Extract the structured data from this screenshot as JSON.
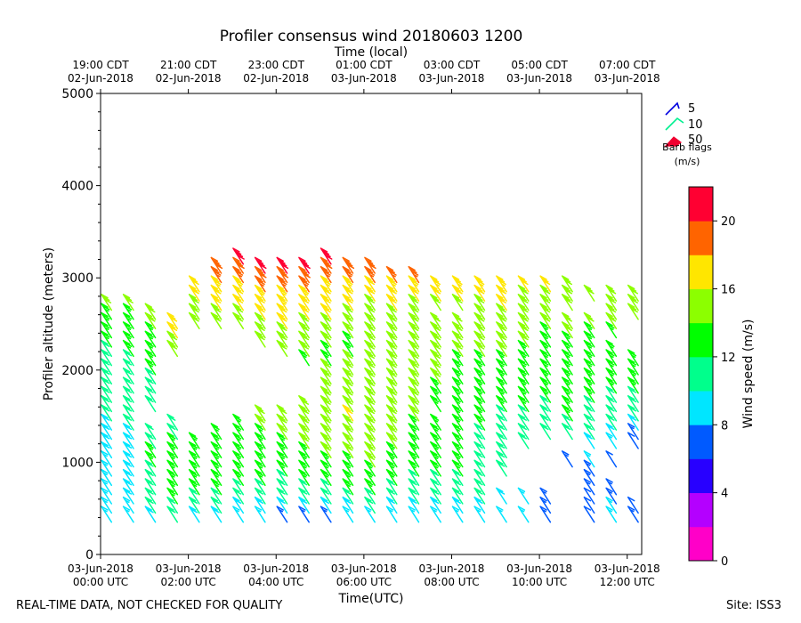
{
  "chart_data": {
    "type": "wind-barb-profile",
    "title": "Profiler consensus wind 20180603 1200",
    "top_axis_label": "Time (local)",
    "top_ticks": [
      {
        "hour": 0,
        "time": "19:00 CDT",
        "date": "02-Jun-2018"
      },
      {
        "hour": 2,
        "time": "21:00 CDT",
        "date": "02-Jun-2018"
      },
      {
        "hour": 4,
        "time": "23:00 CDT",
        "date": "02-Jun-2018"
      },
      {
        "hour": 6,
        "time": "01:00 CDT",
        "date": "03-Jun-2018"
      },
      {
        "hour": 8,
        "time": "03:00 CDT",
        "date": "03-Jun-2018"
      },
      {
        "hour": 10,
        "time": "05:00 CDT",
        "date": "03-Jun-2018"
      },
      {
        "hour": 12,
        "time": "07:00 CDT",
        "date": "03-Jun-2018"
      }
    ],
    "xlabel": "Time(UTC)",
    "x_ticks": [
      {
        "hour": 0,
        "date": "03-Jun-2018",
        "time": "00:00 UTC"
      },
      {
        "hour": 2,
        "date": "03-Jun-2018",
        "time": "02:00 UTC"
      },
      {
        "hour": 4,
        "date": "03-Jun-2018",
        "time": "04:00 UTC"
      },
      {
        "hour": 6,
        "date": "03-Jun-2018",
        "time": "06:00 UTC"
      },
      {
        "hour": 8,
        "date": "03-Jun-2018",
        "time": "08:00 UTC"
      },
      {
        "hour": 10,
        "date": "03-Jun-2018",
        "time": "10:00 UTC"
      },
      {
        "hour": 12,
        "date": "03-Jun-2018",
        "time": "12:00 UTC"
      }
    ],
    "xlim": [
      0,
      12.33
    ],
    "ylabel": "Profiler altitude (meters)",
    "ylim": [
      0,
      5000
    ],
    "y_ticks": [
      0,
      1000,
      2000,
      3000,
      4000,
      5000
    ],
    "legend": {
      "title_line1": "Barb flags",
      "title_line2": "(m/s)",
      "entries": [
        {
          "label": "5",
          "color": "#0000e0"
        },
        {
          "label": "10",
          "color": "#00f090"
        },
        {
          "label": "50",
          "color": "#f00030"
        }
      ]
    },
    "colorbar": {
      "label": "Wind speed (m/s)",
      "min": 0,
      "max": 22,
      "tick_values": [
        0,
        4,
        8,
        12,
        16,
        20
      ],
      "tick_labels": [
        "0",
        "4",
        "8",
        "12",
        "16",
        "20"
      ],
      "colors": [
        "#ff00c8",
        "#b400ff",
        "#2800ff",
        "#005aff",
        "#00e6ff",
        "#00ff8c",
        "#00ff00",
        "#8cff00",
        "#ffe600",
        "#ff6400",
        "#ff0032"
      ]
    },
    "series": {
      "times_hours": [
        0.25,
        0.75,
        1.25,
        1.75,
        2.25,
        2.75,
        3.25,
        3.75,
        4.25,
        4.75,
        5.25,
        5.75,
        6.25,
        6.75,
        7.25,
        7.75,
        8.25,
        8.75,
        9.25,
        9.75,
        10.25,
        10.75,
        11.25,
        11.75,
        12.25
      ],
      "heights_m": [
        350,
        450,
        550,
        650,
        750,
        850,
        950,
        1050,
        1150,
        1250,
        1350,
        1450,
        1550,
        1650,
        1750,
        1850,
        1950,
        2050,
        2150,
        2250,
        2350,
        2450,
        2550,
        2650,
        2750,
        2850,
        2950,
        3050,
        3150
      ],
      "speed_ms": [
        [
          8,
          8,
          8,
          8,
          8,
          8,
          8,
          9,
          9,
          9,
          9,
          10,
          10,
          10,
          10,
          11,
          11,
          11,
          11,
          12,
          12,
          13,
          13,
          14,
          null,
          null,
          null,
          null,
          null
        ],
        [
          8,
          8,
          9,
          9,
          9,
          9,
          9,
          9,
          9,
          9,
          10,
          10,
          10,
          10,
          11,
          11,
          11,
          11,
          12,
          12,
          12,
          13,
          13,
          14,
          null,
          null,
          null,
          null,
          null
        ],
        [
          9,
          10,
          10,
          11,
          11,
          11,
          12,
          12,
          11,
          11,
          null,
          null,
          11,
          11,
          11,
          11,
          12,
          12,
          12,
          13,
          13,
          14,
          14,
          null,
          null,
          null,
          null,
          null,
          null
        ],
        [
          10,
          11,
          12,
          13,
          13,
          13,
          13,
          13,
          12,
          11,
          11,
          null,
          null,
          null,
          null,
          null,
          null,
          null,
          15,
          15,
          16,
          16,
          null,
          null,
          null,
          null,
          null,
          null,
          null
        ],
        [
          9,
          10,
          11,
          12,
          13,
          13,
          12,
          12,
          12,
          null,
          null,
          null,
          null,
          null,
          null,
          null,
          null,
          null,
          null,
          null,
          null,
          15,
          15,
          15,
          16,
          16,
          null,
          null,
          null
        ],
        [
          9,
          10,
          11,
          12,
          13,
          13,
          13,
          13,
          12,
          12,
          null,
          null,
          null,
          null,
          null,
          null,
          null,
          null,
          null,
          null,
          null,
          15,
          15,
          16,
          16,
          17,
          18,
          19,
          null
        ],
        [
          8,
          9,
          10,
          11,
          12,
          12,
          12,
          13,
          13,
          13,
          13,
          null,
          null,
          null,
          null,
          null,
          null,
          null,
          null,
          null,
          null,
          15,
          15,
          16,
          16,
          17,
          18,
          19,
          20
        ],
        [
          8,
          9,
          10,
          11,
          12,
          12,
          12,
          13,
          13,
          13,
          14,
          14,
          null,
          null,
          null,
          null,
          null,
          null,
          null,
          14,
          15,
          15,
          16,
          16,
          17,
          18,
          19,
          20,
          null
        ],
        [
          7,
          9,
          10,
          11,
          11,
          12,
          12,
          13,
          13,
          14,
          14,
          15,
          null,
          null,
          null,
          null,
          null,
          null,
          14,
          14,
          15,
          16,
          16,
          17,
          17,
          18,
          19,
          20,
          null
        ],
        [
          7,
          9,
          10,
          11,
          12,
          12,
          13,
          13,
          14,
          14,
          15,
          15,
          15,
          null,
          null,
          null,
          null,
          13,
          14,
          14,
          15,
          15,
          16,
          16,
          17,
          18,
          19,
          20,
          null
        ],
        [
          7,
          9,
          10,
          11,
          12,
          13,
          13,
          14,
          14,
          15,
          15,
          15,
          15,
          15,
          14,
          14,
          14,
          13,
          13,
          14,
          15,
          15,
          16,
          16,
          16,
          17,
          18,
          19,
          20
        ],
        [
          8,
          9,
          10,
          12,
          12,
          13,
          13,
          14,
          14,
          15,
          15,
          16,
          15,
          15,
          15,
          14,
          14,
          14,
          13,
          13,
          14,
          15,
          15,
          16,
          16,
          17,
          18,
          19,
          null
        ],
        [
          8,
          10,
          11,
          12,
          13,
          13,
          14,
          14,
          14,
          15,
          15,
          15,
          15,
          15,
          15,
          14,
          14,
          14,
          14,
          14,
          14,
          15,
          15,
          15,
          16,
          16,
          18,
          19,
          null
        ],
        [
          8,
          9,
          10,
          11,
          12,
          13,
          13,
          13,
          14,
          14,
          14,
          14,
          14,
          14,
          14,
          14,
          14,
          15,
          15,
          15,
          15,
          15,
          15,
          16,
          16,
          17,
          18,
          null,
          null
        ],
        [
          8,
          9,
          10,
          11,
          11,
          12,
          12,
          13,
          13,
          13,
          13,
          14,
          14,
          14,
          15,
          15,
          15,
          15,
          15,
          15,
          15,
          15,
          15,
          15,
          16,
          17,
          18,
          null,
          null
        ],
        [
          8,
          9,
          10,
          10,
          11,
          12,
          12,
          12,
          13,
          13,
          13,
          null,
          13,
          13,
          13,
          14,
          14,
          14,
          14,
          15,
          15,
          15,
          null,
          15,
          16,
          17,
          null,
          null,
          null
        ],
        [
          8,
          9,
          10,
          11,
          11,
          12,
          12,
          12,
          12,
          12,
          12,
          12,
          12,
          12,
          13,
          13,
          13,
          13,
          14,
          14,
          14,
          15,
          null,
          15,
          16,
          17,
          null,
          null,
          null
        ],
        [
          8,
          9,
          10,
          10,
          11,
          11,
          11,
          11,
          11,
          11,
          12,
          12,
          12,
          12,
          12,
          12,
          13,
          13,
          14,
          14,
          14,
          15,
          15,
          15,
          16,
          17,
          null,
          null,
          null
        ],
        [
          8,
          null,
          9,
          null,
          null,
          10,
          11,
          11,
          11,
          11,
          11,
          11,
          12,
          12,
          12,
          12,
          13,
          13,
          14,
          14,
          14,
          15,
          15,
          16,
          16,
          17,
          null,
          null,
          null
        ],
        [
          8,
          null,
          8,
          null,
          null,
          null,
          null,
          null,
          10,
          10,
          11,
          11,
          12,
          12,
          12,
          13,
          13,
          13,
          13,
          14,
          14,
          15,
          15,
          15,
          15,
          16,
          null,
          null,
          null
        ],
        [
          7,
          7,
          7,
          null,
          null,
          null,
          null,
          null,
          null,
          10,
          11,
          11,
          11,
          12,
          12,
          12,
          12,
          13,
          13,
          13,
          13,
          14,
          14,
          15,
          15,
          16,
          null,
          null,
          null
        ],
        [
          null,
          null,
          null,
          null,
          null,
          null,
          7,
          null,
          null,
          11,
          11,
          12,
          12,
          12,
          12,
          12,
          12,
          12,
          13,
          13,
          14,
          14,
          null,
          14,
          15,
          15,
          null,
          null,
          null
        ],
        [
          6,
          6,
          6,
          7,
          7,
          7,
          8,
          null,
          9,
          10,
          10,
          11,
          11,
          12,
          12,
          12,
          12,
          12,
          13,
          13,
          13,
          14,
          null,
          null,
          15,
          null,
          null,
          null,
          null
        ],
        [
          8,
          8,
          7,
          7,
          null,
          null,
          6,
          null,
          8,
          9,
          10,
          11,
          11,
          11,
          12,
          12,
          12,
          13,
          13,
          null,
          13,
          14,
          14,
          14,
          15,
          null,
          null,
          null,
          null
        ],
        [
          7,
          6,
          null,
          null,
          null,
          null,
          null,
          null,
          6,
          7,
          9,
          10,
          11,
          11,
          12,
          12,
          12,
          12,
          null,
          null,
          null,
          null,
          14,
          15,
          15,
          null,
          null,
          null,
          null
        ]
      ]
    },
    "footer_left": "REAL-TIME DATA, NOT CHECKED FOR QUALITY",
    "footer_right": "Site: ISS3"
  }
}
